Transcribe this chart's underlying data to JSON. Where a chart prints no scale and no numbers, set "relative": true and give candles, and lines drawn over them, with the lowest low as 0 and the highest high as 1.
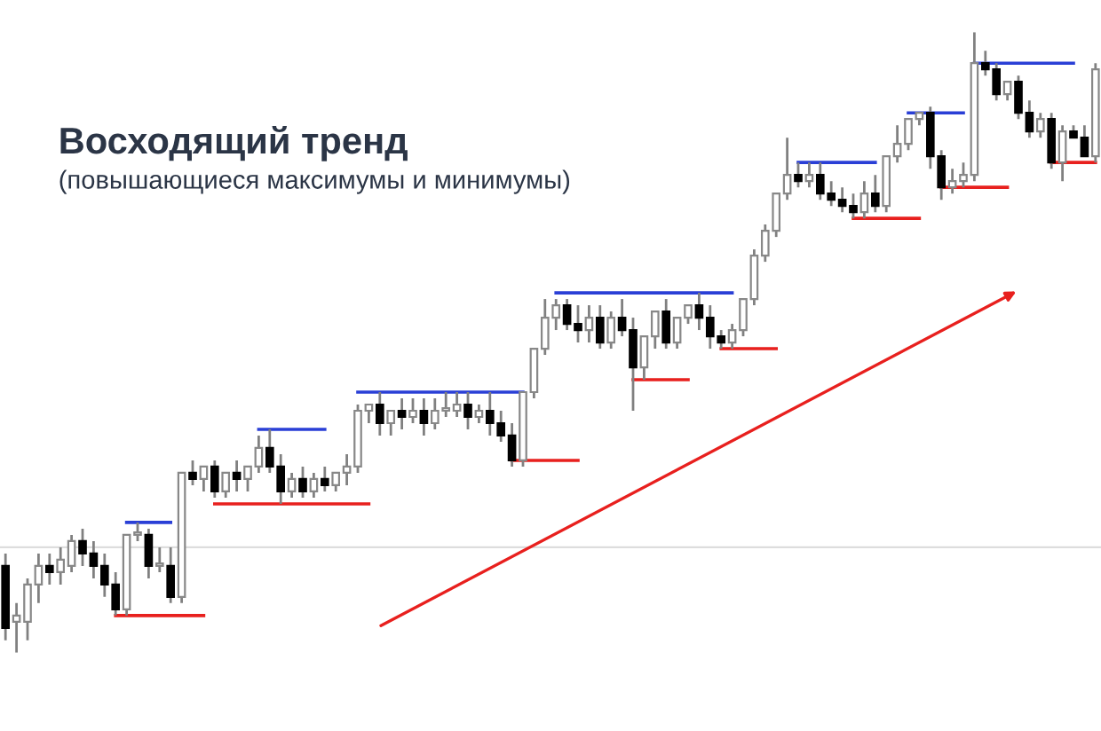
{
  "chart_data": {
    "type": "candlestick",
    "title": "Восходящий тренд",
    "subtitle": "(повышающиеся максимумы и минимумы)",
    "relative": true,
    "categories": [
      null,
      null,
      null,
      null,
      null,
      null,
      null,
      null,
      null,
      null,
      null,
      null,
      null,
      null,
      null,
      null,
      null,
      null,
      null,
      null,
      null,
      null,
      null,
      null,
      null,
      null,
      null,
      null,
      null,
      null,
      null,
      null,
      null,
      null,
      null,
      null,
      null,
      null,
      null,
      null,
      null,
      null,
      null,
      null,
      null,
      null,
      null,
      null,
      null,
      null,
      null,
      null,
      null,
      null,
      null,
      null,
      null,
      null,
      null,
      null,
      null,
      null,
      null,
      null,
      null,
      null,
      null,
      null,
      null,
      null,
      null,
      null,
      null,
      null,
      null,
      null,
      null,
      null,
      null,
      null,
      null,
      null,
      null,
      null,
      null,
      null,
      null,
      null,
      null,
      null,
      null,
      null,
      null,
      null,
      null,
      null,
      null,
      null,
      null,
      null
    ],
    "ohlc": [
      [
        0.14,
        0.16,
        0.02,
        0.04
      ],
      [
        0.05,
        0.08,
        0,
        0.06
      ],
      [
        0.05,
        0.12,
        0.02,
        0.11
      ],
      [
        0.11,
        0.16,
        0.08,
        0.14
      ],
      [
        0.14,
        0.16,
        0.11,
        0.13
      ],
      [
        0.13,
        0.17,
        0.11,
        0.15
      ],
      [
        0.14,
        0.19,
        0.13,
        0.18
      ],
      [
        0.18,
        0.2,
        0.14,
        0.16
      ],
      [
        0.16,
        0.18,
        0.12,
        0.14
      ],
      [
        0.14,
        0.16,
        0.09,
        0.11
      ],
      [
        0.11,
        0.13,
        0.06,
        0.07
      ],
      [
        0.07,
        0.19,
        0.06,
        0.19
      ],
      [
        0.19,
        0.21,
        0.18,
        0.19
      ],
      [
        0.19,
        0.2,
        0.12,
        0.14
      ],
      [
        0.14,
        0.17,
        0.13,
        0.14
      ],
      [
        0.14,
        0.17,
        0.08,
        0.09
      ],
      [
        0.09,
        0.29,
        0.08,
        0.29
      ],
      [
        0.29,
        0.31,
        0.27,
        0.28
      ],
      [
        0.28,
        0.3,
        0.26,
        0.3
      ],
      [
        0.3,
        0.31,
        0.25,
        0.26
      ],
      [
        0.26,
        0.29,
        0.25,
        0.29
      ],
      [
        0.29,
        0.31,
        0.26,
        0.28
      ],
      [
        0.28,
        0.3,
        0.26,
        0.3
      ],
      [
        0.3,
        0.35,
        0.29,
        0.33
      ],
      [
        0.33,
        0.36,
        0.29,
        0.3
      ],
      [
        0.3,
        0.32,
        0.24,
        0.26
      ],
      [
        0.26,
        0.29,
        0.25,
        0.28
      ],
      [
        0.28,
        0.3,
        0.25,
        0.26
      ],
      [
        0.26,
        0.29,
        0.25,
        0.28
      ],
      [
        0.28,
        0.3,
        0.26,
        0.27
      ],
      [
        0.27,
        0.29,
        0.26,
        0.29
      ],
      [
        0.29,
        0.32,
        0.27,
        0.3
      ],
      [
        0.3,
        0.4,
        0.29,
        0.39
      ],
      [
        0.39,
        0.4,
        0.37,
        0.4
      ],
      [
        0.4,
        0.42,
        0.35,
        0.37
      ],
      [
        0.37,
        0.39,
        0.35,
        0.39
      ],
      [
        0.39,
        0.41,
        0.36,
        0.38
      ],
      [
        0.38,
        0.41,
        0.37,
        0.39
      ],
      [
        0.39,
        0.41,
        0.35,
        0.37
      ],
      [
        0.37,
        0.41,
        0.36,
        0.39
      ],
      [
        0.39,
        0.42,
        0.38,
        0.39
      ],
      [
        0.39,
        0.42,
        0.38,
        0.4
      ],
      [
        0.4,
        0.42,
        0.36,
        0.38
      ],
      [
        0.38,
        0.4,
        0.37,
        0.39
      ],
      [
        0.39,
        0.42,
        0.35,
        0.37
      ],
      [
        0.37,
        0.39,
        0.34,
        0.35
      ],
      [
        0.35,
        0.37,
        0.3,
        0.31
      ],
      [
        0.31,
        0.42,
        0.3,
        0.42
      ],
      [
        0.42,
        0.49,
        0.41,
        0.49
      ],
      [
        0.49,
        0.57,
        0.48,
        0.54
      ],
      [
        0.54,
        0.57,
        0.52,
        0.56
      ],
      [
        0.56,
        0.57,
        0.52,
        0.53
      ],
      [
        0.53,
        0.56,
        0.5,
        0.52
      ],
      [
        0.52,
        0.56,
        0.5,
        0.54
      ],
      [
        0.54,
        0.56,
        0.49,
        0.5
      ],
      [
        0.5,
        0.55,
        0.49,
        0.54
      ],
      [
        0.54,
        0.57,
        0.51,
        0.52
      ],
      [
        0.52,
        0.54,
        0.39,
        0.46
      ],
      [
        0.46,
        0.51,
        0.44,
        0.51
      ],
      [
        0.51,
        0.55,
        0.49,
        0.55
      ],
      [
        0.55,
        0.57,
        0.49,
        0.5
      ],
      [
        0.5,
        0.54,
        0.49,
        0.54
      ],
      [
        0.54,
        0.56,
        0.53,
        0.56
      ],
      [
        0.56,
        0.58,
        0.52,
        0.54
      ],
      [
        0.54,
        0.56,
        0.49,
        0.51
      ],
      [
        0.51,
        0.52,
        0.49,
        0.5
      ],
      [
        0.5,
        0.53,
        0.49,
        0.52
      ],
      [
        0.52,
        0.57,
        0.51,
        0.57
      ],
      [
        0.57,
        0.65,
        0.56,
        0.64
      ],
      [
        0.64,
        0.69,
        0.63,
        0.68
      ],
      [
        0.68,
        0.74,
        0.67,
        0.74
      ],
      [
        0.74,
        0.83,
        0.73,
        0.77
      ],
      [
        0.77,
        0.79,
        0.75,
        0.76
      ],
      [
        0.76,
        0.79,
        0.75,
        0.77
      ],
      [
        0.77,
        0.79,
        0.73,
        0.74
      ],
      [
        0.74,
        0.76,
        0.72,
        0.73
      ],
      [
        0.73,
        0.75,
        0.71,
        0.72
      ],
      [
        0.72,
        0.74,
        0.7,
        0.71
      ],
      [
        0.71,
        0.76,
        0.7,
        0.74
      ],
      [
        0.74,
        0.77,
        0.71,
        0.72
      ],
      [
        0.72,
        0.8,
        0.71,
        0.8
      ],
      [
        0.8,
        0.85,
        0.79,
        0.82
      ],
      [
        0.82,
        0.86,
        0.81,
        0.86
      ],
      [
        0.86,
        0.87,
        0.85,
        0.87
      ],
      [
        0.87,
        0.88,
        0.78,
        0.8
      ],
      [
        0.8,
        0.81,
        0.73,
        0.75
      ],
      [
        0.75,
        0.78,
        0.74,
        0.76
      ],
      [
        0.76,
        0.79,
        0.75,
        0.77
      ],
      [
        0.77,
        1,
        0.76,
        0.95
      ],
      [
        0.95,
        0.97,
        0.93,
        0.94
      ],
      [
        0.94,
        0.95,
        0.89,
        0.9
      ],
      [
        0.9,
        0.92,
        0.89,
        0.92
      ],
      [
        0.92,
        0.93,
        0.86,
        0.87
      ],
      [
        0.87,
        0.89,
        0.83,
        0.84
      ],
      [
        0.84,
        0.87,
        0.83,
        0.86
      ],
      [
        0.86,
        0.87,
        0.78,
        0.79
      ],
      [
        0.79,
        0.85,
        0.76,
        0.84
      ],
      [
        0.84,
        0.85,
        0.83,
        0.83
      ],
      [
        0.83,
        0.85,
        0.8,
        0.8
      ],
      [
        0.8,
        0.95,
        0.79,
        0.94
      ]
    ],
    "series": [
      {
        "type": "line",
        "color": "#e8201e",
        "values": [
          null,
          null,
          null,
          null,
          null,
          null,
          null,
          null,
          null,
          null,
          0.06,
          0.06,
          0.06,
          0.06,
          0.06,
          0.06,
          0.06,
          0.06,
          0.06,
          null,
          null,
          null,
          null,
          null,
          null,
          null,
          null,
          null,
          null,
          null,
          null,
          null,
          null,
          null,
          null,
          null,
          null,
          null,
          null,
          null,
          null,
          null,
          null,
          null,
          null,
          null,
          0.31,
          0.31,
          0.31,
          0.31,
          0.31,
          0.31,
          0.31,
          null,
          null,
          null,
          null,
          null,
          null,
          null,
          null,
          null,
          null,
          null,
          null,
          0.49,
          0.49,
          0.49,
          0.49,
          0.49,
          0.49,
          null,
          null,
          null,
          null,
          null,
          null,
          null,
          null,
          null,
          null,
          null,
          null,
          null,
          null,
          0.75,
          0.75,
          0.75,
          0.75,
          0.75,
          0.75,
          0.75,
          null,
          null,
          null,
          null,
          null,
          null,
          null,
          null
        ]
      },
      {
        "type": "line",
        "color": "#e8201e",
        "values": [
          null,
          null,
          null,
          null,
          null,
          null,
          null,
          null,
          null,
          null,
          null,
          null,
          null,
          null,
          null,
          null,
          null,
          null,
          null,
          0.24,
          0.24,
          0.24,
          0.24,
          0.24,
          0.24,
          0.24,
          0.24,
          0.24,
          0.24,
          0.24,
          0.24,
          0.24,
          0.24,
          0.24,
          null,
          null,
          null,
          null,
          null,
          null,
          null,
          null,
          null,
          null,
          null,
          null,
          null,
          null,
          null,
          null,
          null,
          null,
          null,
          null,
          null,
          null,
          null,
          0.44,
          0.44,
          0.44,
          0.44,
          0.44,
          0.44,
          null,
          null,
          null,
          null,
          null,
          null,
          null,
          null,
          null,
          null,
          null,
          null,
          null,
          null,
          0.7,
          0.7,
          0.7,
          0.7,
          0.7,
          0.7,
          0.7,
          null,
          null,
          null,
          null,
          null,
          null,
          null,
          null,
          null,
          null,
          null,
          0.79,
          0.79,
          0.79,
          0.79,
          0.79
        ]
      },
      {
        "type": "line",
        "color": "#2a3fd6",
        "values": [
          null,
          null,
          null,
          null,
          null,
          null,
          null,
          null,
          null,
          null,
          null,
          0.21,
          0.21,
          0.21,
          0.21,
          0.21,
          null,
          null,
          null,
          null,
          null,
          null,
          null,
          null,
          null,
          null,
          null,
          null,
          null,
          null,
          null,
          null,
          0.42,
          0.42,
          0.42,
          0.42,
          0.42,
          0.42,
          0.42,
          0.42,
          0.42,
          0.42,
          0.42,
          0.42,
          0.42,
          0.42,
          0.42,
          0.42,
          null,
          null,
          null,
          null,
          null,
          null,
          null,
          null,
          null,
          null,
          null,
          null,
          null,
          null,
          null,
          null,
          null,
          null,
          null,
          null,
          null,
          null,
          null,
          null,
          0.79,
          0.79,
          0.79,
          0.79,
          0.79,
          0.79,
          0.79,
          0.79,
          null,
          null,
          null,
          null,
          null,
          null,
          null,
          null,
          0.95,
          0.95,
          0.95,
          0.95,
          0.95,
          0.95,
          0.95,
          0.95,
          0.95,
          0.95,
          null,
          null
        ]
      },
      {
        "type": "line",
        "color": "#2a3fd6",
        "values": [
          null,
          null,
          null,
          null,
          null,
          null,
          null,
          null,
          null,
          null,
          null,
          null,
          null,
          null,
          null,
          null,
          null,
          null,
          null,
          null,
          null,
          null,
          null,
          0.36,
          0.36,
          0.36,
          0.36,
          0.36,
          0.36,
          0.36,
          null,
          null,
          null,
          null,
          null,
          null,
          null,
          null,
          null,
          null,
          null,
          null,
          null,
          null,
          null,
          null,
          null,
          null,
          null,
          null,
          0.58,
          0.58,
          0.58,
          0.58,
          0.58,
          0.58,
          0.58,
          0.58,
          0.58,
          0.58,
          0.58,
          0.58,
          0.58,
          0.58,
          0.58,
          0.58,
          0.58,
          null,
          null,
          null,
          null,
          null,
          null,
          null,
          null,
          null,
          null,
          null,
          null,
          null,
          null,
          null,
          0.87,
          0.87,
          0.87,
          0.87,
          0.87,
          0.87,
          null,
          null,
          null,
          null,
          null,
          null,
          null,
          null,
          null,
          null,
          null,
          null
        ]
      }
    ],
    "ref_lines": [
      {
        "axis": "y",
        "value": 0.17,
        "color": "#dddddd"
      }
    ]
  }
}
